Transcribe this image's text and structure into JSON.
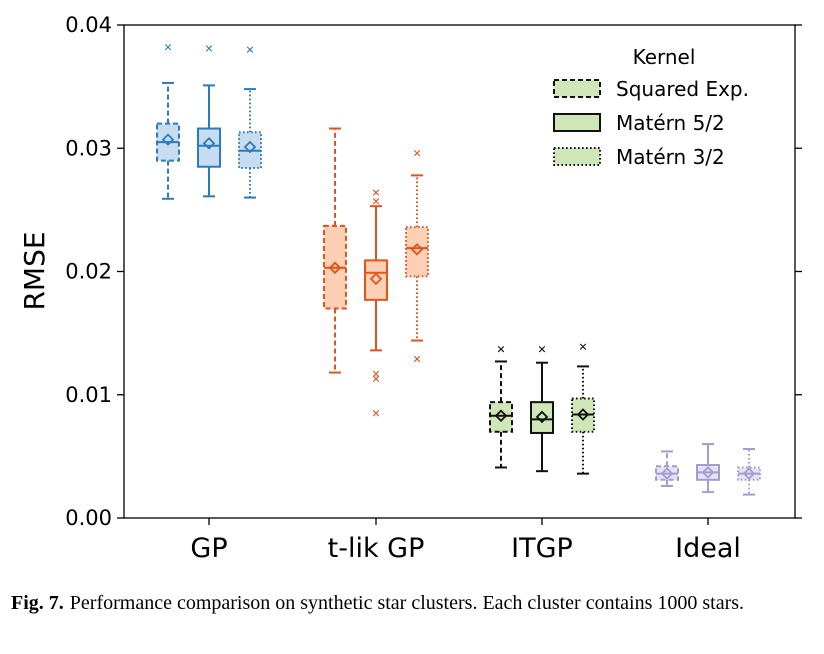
{
  "chart_data": {
    "type": "box",
    "ylabel": "RMSE",
    "ylim": [
      0.0,
      0.04
    ],
    "yticks": [
      0.0,
      0.01,
      0.02,
      0.03,
      0.04
    ],
    "ytick_labels": [
      "0.00",
      "0.01",
      "0.02",
      "0.03",
      "0.04"
    ],
    "categories": [
      "GP",
      "t-lik GP",
      "ITGP",
      "Ideal"
    ],
    "category_colors": [
      "#2c7bbd",
      "#e3531a",
      "#111111",
      "#a49ccf"
    ],
    "category_fills": [
      "#c7dcef",
      "#fbd0b4",
      "#cfe6b8",
      "#e6e2f2"
    ],
    "legend": {
      "title": "Kernel",
      "position": "top-right",
      "entries": [
        "Squared Exp.",
        "Matérn 5/2",
        "Matérn 3/2"
      ],
      "line_styles": [
        "dashed",
        "solid",
        "dotted"
      ],
      "fill": "#cfe6b8"
    },
    "series": [
      {
        "name": "Squared Exp.",
        "line_style": "dashed",
        "boxes": [
          {
            "category": "GP",
            "whisker_low": 0.0259,
            "q1": 0.029,
            "median": 0.0305,
            "q3": 0.032,
            "whisker_high": 0.0353,
            "mean": 0.0307,
            "outliers": [
              0.0382
            ]
          },
          {
            "category": "t-lik GP",
            "whisker_low": 0.0118,
            "q1": 0.017,
            "median": 0.0203,
            "q3": 0.0237,
            "whisker_high": 0.0316,
            "mean": 0.0203,
            "outliers": []
          },
          {
            "category": "ITGP",
            "whisker_low": 0.0041,
            "q1": 0.007,
            "median": 0.0083,
            "q3": 0.0094,
            "whisker_high": 0.0127,
            "mean": 0.0083,
            "outliers": [
              0.0137
            ]
          },
          {
            "category": "Ideal",
            "whisker_low": 0.0026,
            "q1": 0.0031,
            "median": 0.0036,
            "q3": 0.0042,
            "whisker_high": 0.0054,
            "mean": 0.0036,
            "outliers": []
          }
        ]
      },
      {
        "name": "Matérn 5/2",
        "line_style": "solid",
        "boxes": [
          {
            "category": "GP",
            "whisker_low": 0.0261,
            "q1": 0.0285,
            "median": 0.0302,
            "q3": 0.0316,
            "whisker_high": 0.0351,
            "mean": 0.0304,
            "outliers": [
              0.0381
            ]
          },
          {
            "category": "t-lik GP",
            "whisker_low": 0.0136,
            "q1": 0.0177,
            "median": 0.0199,
            "q3": 0.0209,
            "whisker_high": 0.0253,
            "mean": 0.0194,
            "outliers": [
              0.0264,
              0.0257,
              0.0117,
              0.0113,
              0.0085
            ]
          },
          {
            "category": "ITGP",
            "whisker_low": 0.0038,
            "q1": 0.0069,
            "median": 0.008,
            "q3": 0.0094,
            "whisker_high": 0.0126,
            "mean": 0.0082,
            "outliers": [
              0.0137
            ]
          },
          {
            "category": "Ideal",
            "whisker_low": 0.0021,
            "q1": 0.0031,
            "median": 0.0037,
            "q3": 0.0043,
            "whisker_high": 0.006,
            "mean": 0.0037,
            "outliers": []
          }
        ]
      },
      {
        "name": "Matérn 3/2",
        "line_style": "dotted",
        "boxes": [
          {
            "category": "GP",
            "whisker_low": 0.026,
            "q1": 0.0284,
            "median": 0.0298,
            "q3": 0.0313,
            "whisker_high": 0.0348,
            "mean": 0.0301,
            "outliers": [
              0.038
            ]
          },
          {
            "category": "t-lik GP",
            "whisker_low": 0.0144,
            "q1": 0.0196,
            "median": 0.0219,
            "q3": 0.0236,
            "whisker_high": 0.0278,
            "mean": 0.0218,
            "outliers": [
              0.0296,
              0.0129
            ]
          },
          {
            "category": "ITGP",
            "whisker_low": 0.0036,
            "q1": 0.007,
            "median": 0.0084,
            "q3": 0.0097,
            "whisker_high": 0.0123,
            "mean": 0.0084,
            "outliers": [
              0.0139
            ]
          },
          {
            "category": "Ideal",
            "whisker_low": 0.0019,
            "q1": 0.0031,
            "median": 0.0036,
            "q3": 0.0041,
            "whisker_high": 0.0056,
            "mean": 0.0036,
            "outliers": []
          }
        ]
      }
    ]
  },
  "caption": {
    "label": "Fig. 7.",
    "text": "Performance comparison on synthetic star clusters. Each cluster contains 1000 stars."
  }
}
